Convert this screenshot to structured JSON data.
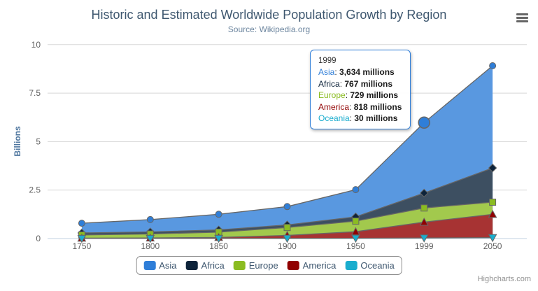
{
  "title": "Historic and Estimated Worldwide Population Growth by Region",
  "subtitle": "Source: Wikipedia.org",
  "credits": "Highcharts.com",
  "chart_data": {
    "type": "area",
    "stacking": "normal",
    "title": "Historic and Estimated Worldwide Population Growth by Region",
    "subtitle": "Source: Wikipedia.org",
    "categories": [
      "1750",
      "1800",
      "1850",
      "1900",
      "1950",
      "1999",
      "2050"
    ],
    "xlabel": "",
    "ylabel": "Billions",
    "ylim": [
      0,
      10
    ],
    "yticks": [
      0,
      2.5,
      5,
      7.5,
      10
    ],
    "value_unit": "millions",
    "grid": true,
    "legend_position": "bottom",
    "line_color": "#666666",
    "fill_opacity": 0.8,
    "series": [
      {
        "name": "Asia",
        "color": "#2f7ed8",
        "marker": "circle",
        "values": [
          502,
          635,
          809,
          947,
          1402,
          3634,
          5268
        ]
      },
      {
        "name": "Africa",
        "color": "#0d233a",
        "marker": "diamond",
        "values": [
          106,
          107,
          111,
          133,
          221,
          767,
          1766
        ]
      },
      {
        "name": "Europe",
        "color": "#8bbc21",
        "marker": "square",
        "values": [
          163,
          203,
          276,
          408,
          547,
          729,
          628
        ]
      },
      {
        "name": "America",
        "color": "#910000",
        "marker": "triangle",
        "values": [
          18,
          31,
          54,
          156,
          339,
          818,
          1201
        ]
      },
      {
        "name": "Oceania",
        "color": "#1aadce",
        "marker": "triangle-down",
        "values": [
          2,
          2,
          2,
          6,
          13,
          30,
          46
        ]
      }
    ],
    "stack_order_bottom_to_top": [
      "Oceania",
      "America",
      "Europe",
      "Africa",
      "Asia"
    ],
    "hover": {
      "series": "Asia",
      "category": "1999"
    }
  },
  "tooltip": {
    "header": "1999",
    "border_color": "#2f7ed8",
    "rows": [
      {
        "name": "Asia",
        "color": "#2f7ed8",
        "value": "3,634 millions"
      },
      {
        "name": "Africa",
        "color": "#0d233a",
        "value": "767 millions"
      },
      {
        "name": "Europe",
        "color": "#8bbc21",
        "value": "729 millions"
      },
      {
        "name": "America",
        "color": "#910000",
        "value": "818 millions"
      },
      {
        "name": "Oceania",
        "color": "#1aadce",
        "value": "30 millions"
      }
    ]
  }
}
